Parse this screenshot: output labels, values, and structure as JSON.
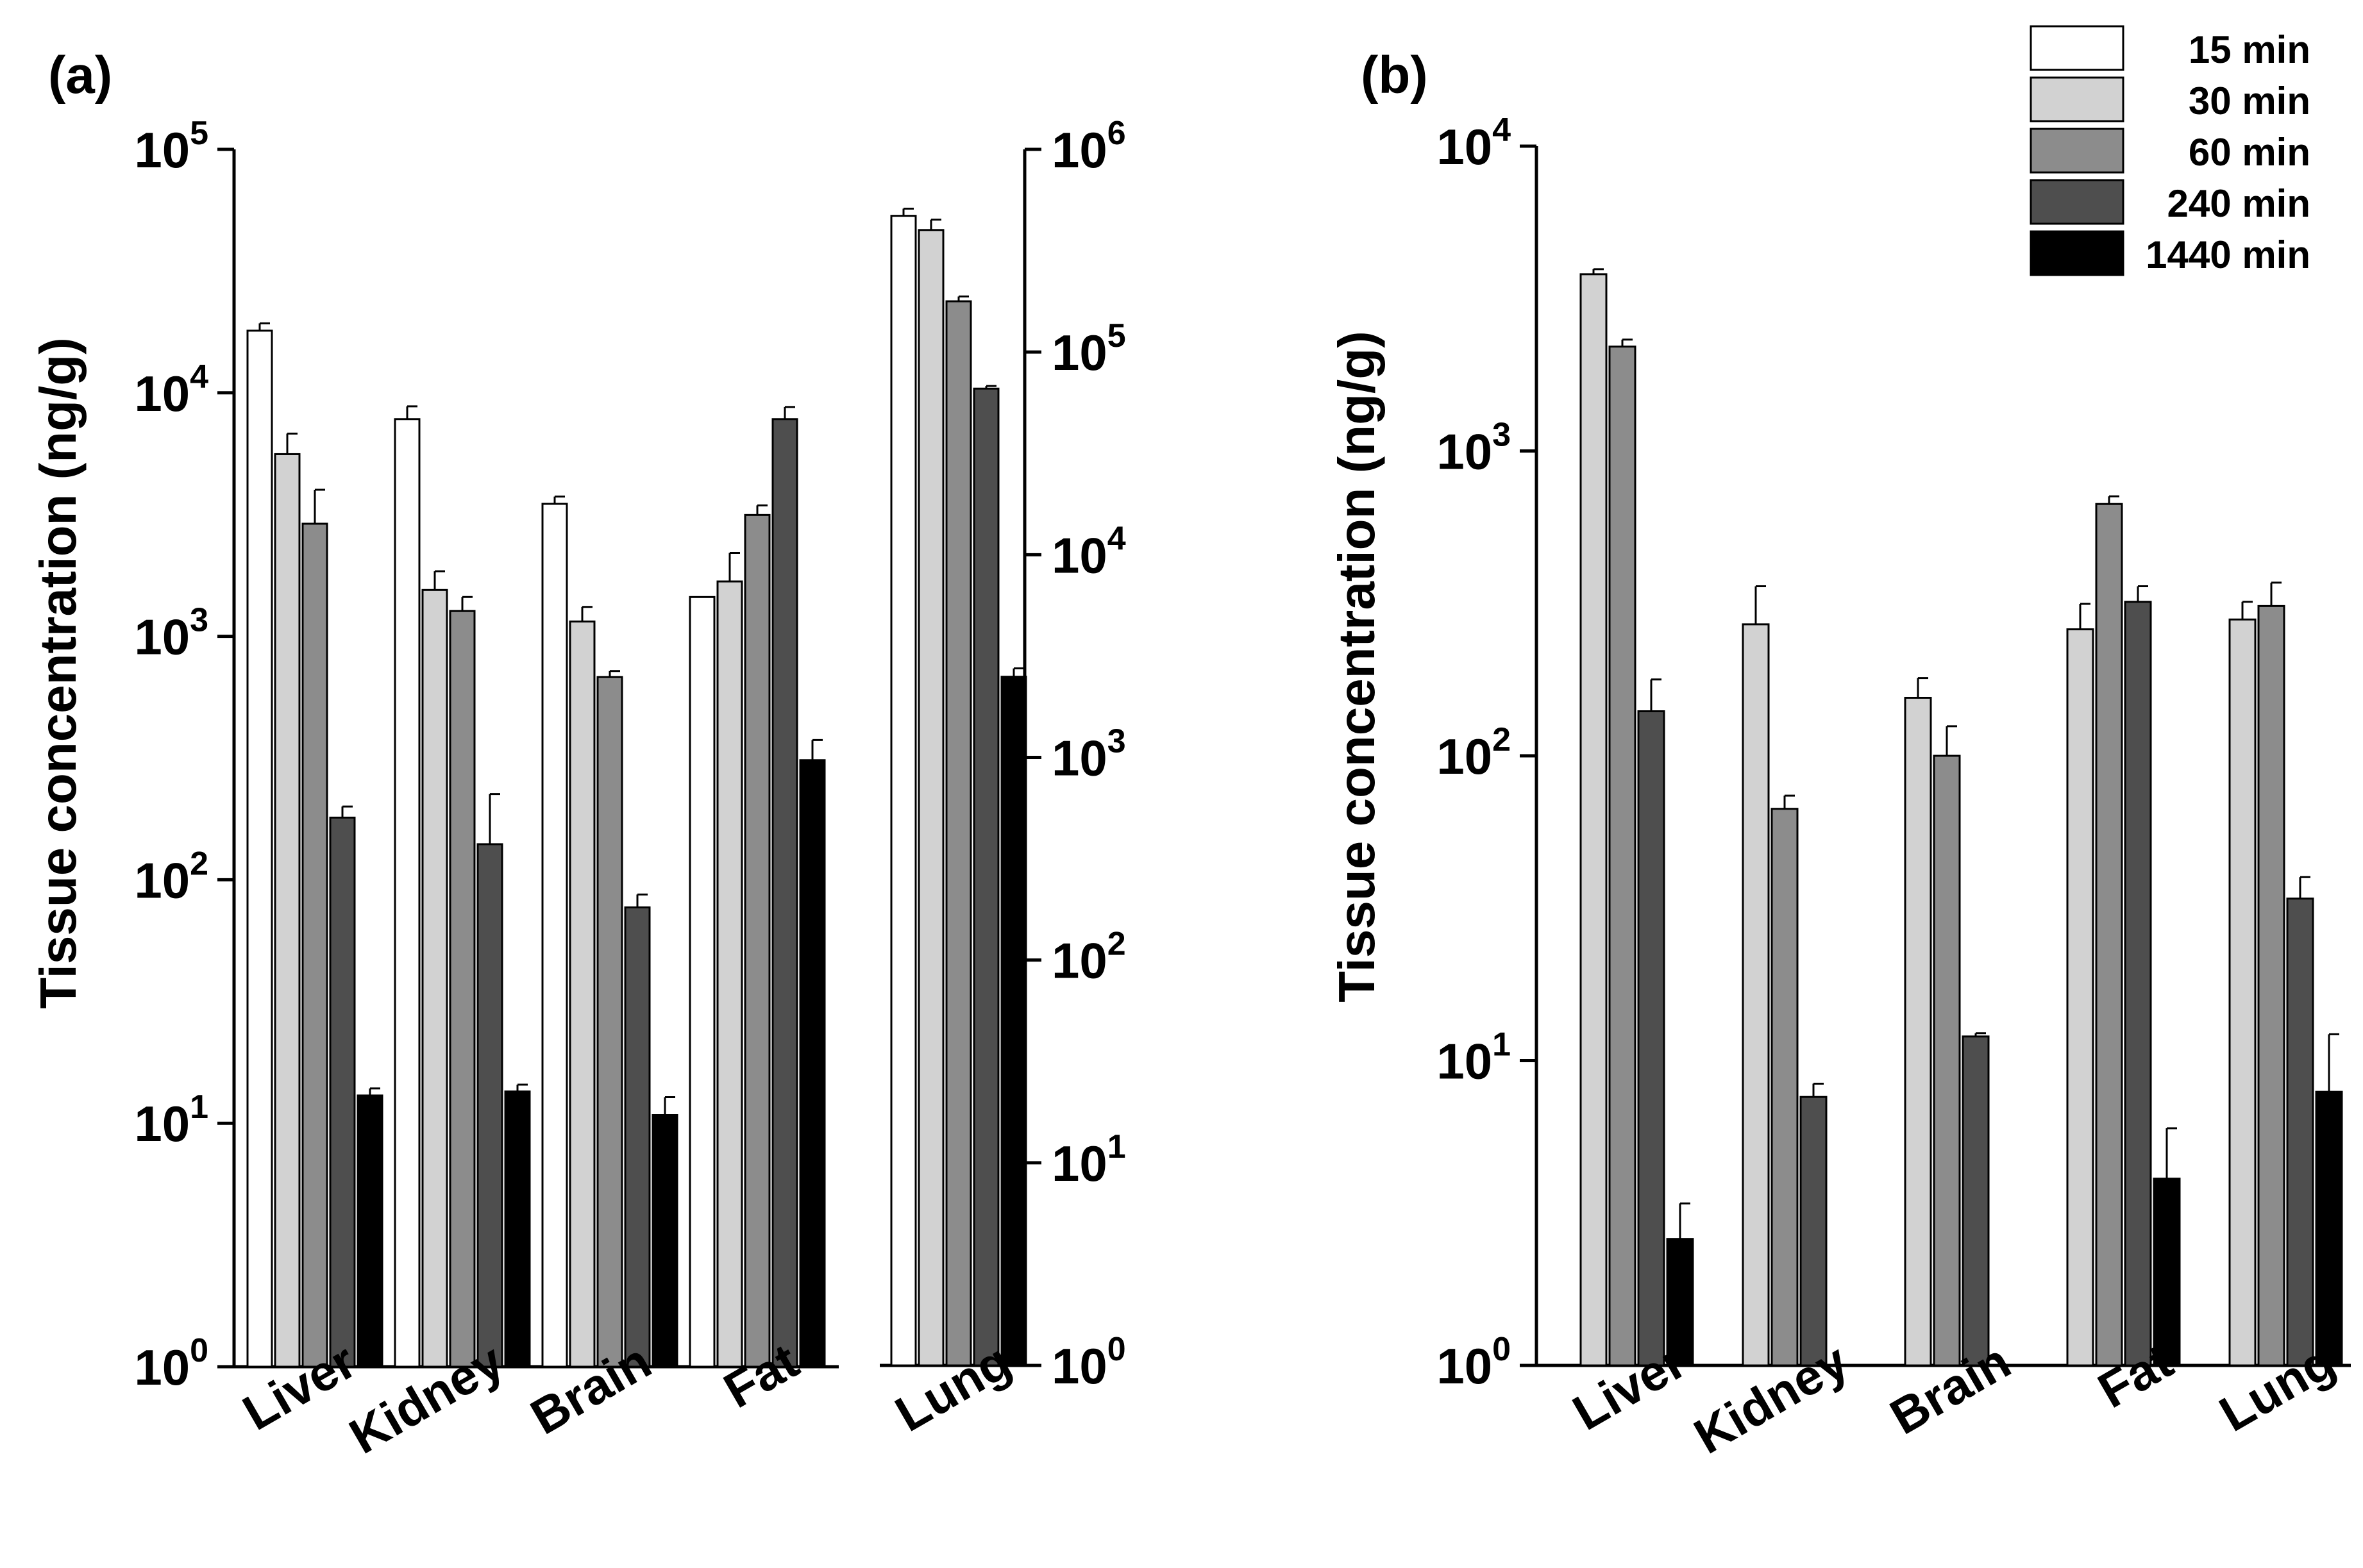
{
  "chart_data": [
    {
      "type": "bar",
      "panel_label": "(a)",
      "ylabel": "Tissue concentration (ng/g)",
      "y_scale": "log",
      "categories": [
        "Liver",
        "Kidney",
        "Brain",
        "Fat"
      ],
      "ylim": [
        1,
        100000
      ],
      "yticks": [
        {
          "base": "10",
          "exp": "0"
        },
        {
          "base": "10",
          "exp": "1"
        },
        {
          "base": "10",
          "exp": "2"
        },
        {
          "base": "10",
          "exp": "3"
        },
        {
          "base": "10",
          "exp": "4"
        },
        {
          "base": "10",
          "exp": "5"
        }
      ],
      "series": [
        {
          "name": "15 min",
          "values": [
            18000,
            7800,
            3500,
            1450
          ],
          "errors": [
            1300,
            1000,
            250,
            0
          ]
        },
        {
          "name": "30 min",
          "values": [
            5600,
            1550,
            1150,
            1680
          ],
          "errors": [
            1200,
            300,
            170,
            520
          ]
        },
        {
          "name": "60 min",
          "values": [
            2900,
            1270,
            680,
            3150
          ],
          "errors": [
            1100,
            180,
            40,
            300
          ]
        },
        {
          "name": "240 min",
          "values": [
            180,
            140,
            77,
            7800
          ],
          "errors": [
            20,
            85,
            10,
            950
          ]
        },
        {
          "name": "1440 min",
          "values": [
            13,
            13.5,
            10.8,
            310
          ],
          "errors": [
            0.9,
            0.9,
            2,
            65
          ]
        }
      ],
      "secondary": {
        "categories": [
          "Lung"
        ],
        "y_scale": "log",
        "ylim": [
          1,
          1000000
        ],
        "yticks": [
          {
            "base": "10",
            "exp": "0"
          },
          {
            "base": "10",
            "exp": "1"
          },
          {
            "base": "10",
            "exp": "2"
          },
          {
            "base": "10",
            "exp": "3"
          },
          {
            "base": "10",
            "exp": "4"
          },
          {
            "base": "10",
            "exp": "5"
          },
          {
            "base": "10",
            "exp": "6"
          }
        ],
        "series": [
          {
            "name": "15 min",
            "values": [
              470000
            ],
            "errors": [
              40000
            ]
          },
          {
            "name": "30 min",
            "values": [
              400000
            ],
            "errors": [
              50000
            ]
          },
          {
            "name": "60 min",
            "values": [
              178000
            ],
            "errors": [
              10000
            ]
          },
          {
            "name": "240 min",
            "values": [
              66000
            ],
            "errors": [
              2000
            ]
          },
          {
            "name": "1440 min",
            "values": [
              2500
            ],
            "errors": [
              250
            ]
          }
        ]
      }
    },
    {
      "type": "bar",
      "panel_label": "(b)",
      "ylabel": "Tissue concentration (ng/g)",
      "y_scale": "log",
      "categories": [
        "Liver",
        "Kidney",
        "Brain",
        "Fat",
        "Lung"
      ],
      "ylim": [
        1,
        10000
      ],
      "yticks": [
        {
          "base": "10",
          "exp": "0"
        },
        {
          "base": "10",
          "exp": "1"
        },
        {
          "base": "10",
          "exp": "2"
        },
        {
          "base": "10",
          "exp": "3"
        },
        {
          "base": "10",
          "exp": "4"
        }
      ],
      "series": [
        {
          "name": "30 min",
          "values": [
            3800,
            270,
            155,
            260,
            280
          ],
          "errors": [
            150,
            90,
            25,
            55,
            40
          ]
        },
        {
          "name": "60 min",
          "values": [
            2200,
            67,
            100,
            670,
            310
          ],
          "errors": [
            120,
            7,
            25,
            40,
            60
          ]
        },
        {
          "name": "240 min",
          "values": [
            140,
            7.6,
            12,
            320,
            34
          ],
          "errors": [
            38,
            0.8,
            0.3,
            40,
            6
          ]
        },
        {
          "name": "1440 min",
          "values": [
            2.6,
            null,
            null,
            4.1,
            7.9
          ],
          "errors": [
            0.8,
            null,
            null,
            1.9,
            4.3
          ]
        }
      ]
    }
  ],
  "legend": [
    {
      "label": "15 min",
      "color": "#ffffff"
    },
    {
      "label": "30 min",
      "color": "#d2d2d2"
    },
    {
      "label": "60 min",
      "color": "#8c8c8c"
    },
    {
      "label": "240 min",
      "color": "#4e4e4e"
    },
    {
      "label": "1440 min",
      "color": "#000000"
    }
  ]
}
